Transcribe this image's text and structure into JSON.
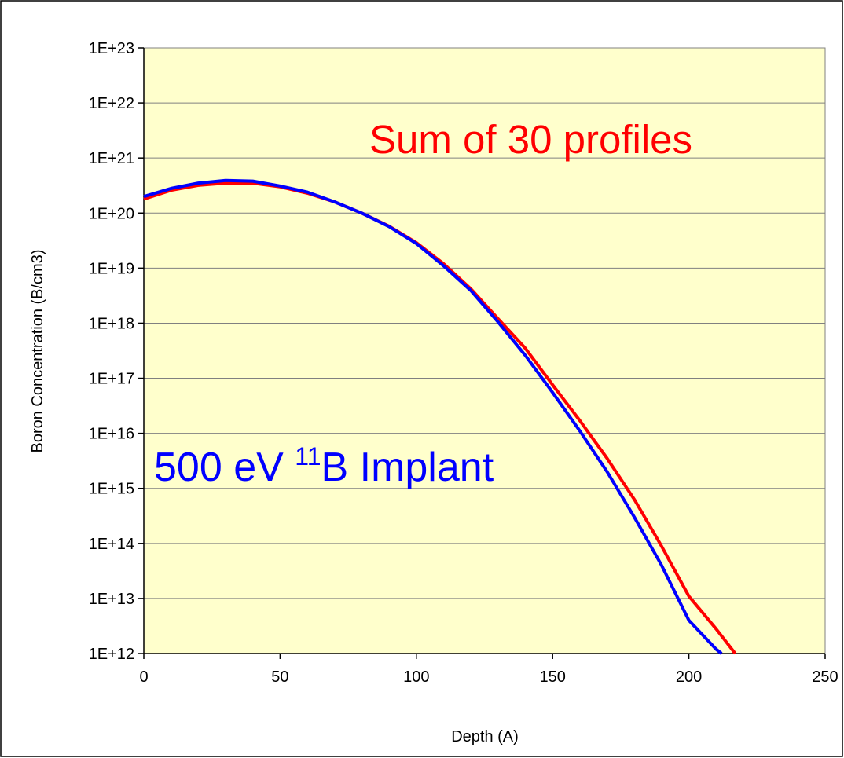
{
  "chart_data": {
    "type": "line",
    "xlabel": "Depth (A)",
    "ylabel": "Boron Concentration (B/cm3)",
    "log_y": true,
    "grid": true,
    "background": "#ffffcc",
    "xlim": [
      0,
      250
    ],
    "xticks": [
      0,
      50,
      100,
      150,
      200,
      250
    ],
    "ylim": [
      1000000000000.0,
      1e+23
    ],
    "yticks": [
      {
        "value": 1000000000000.0,
        "label": "1E+12"
      },
      {
        "value": 10000000000000.0,
        "label": "1E+13"
      },
      {
        "value": 100000000000000.0,
        "label": "1E+14"
      },
      {
        "value": 1000000000000000.0,
        "label": "1E+15"
      },
      {
        "value": 1e+16,
        "label": "1E+16"
      },
      {
        "value": 1e+17,
        "label": "1E+17"
      },
      {
        "value": 1e+18,
        "label": "1E+18"
      },
      {
        "value": 1e+19,
        "label": "1E+19"
      },
      {
        "value": 1e+20,
        "label": "1E+20"
      },
      {
        "value": 1e+21,
        "label": "1E+21"
      },
      {
        "value": 1e+22,
        "label": "1E+22"
      },
      {
        "value": 1e+23,
        "label": "1E+23"
      }
    ],
    "series": [
      {
        "color": "#ff0000",
        "x": [
          0,
          10,
          20,
          30,
          40,
          50,
          60,
          70,
          80,
          90,
          100,
          110,
          120,
          130,
          140,
          150,
          160,
          170,
          180,
          190,
          200,
          210,
          217
        ],
        "values": [
          1.8e+20,
          2.6e+20,
          3.2e+20,
          3.5e+20,
          3.5e+20,
          3e+20,
          2.3e+20,
          1.6e+20,
          1e+20,
          5.8e+19,
          2.9e+19,
          1.2e+19,
          4.2e+18,
          1.2e+18,
          3.5e+17,
          7.6e+16,
          1.7e+16,
          3500000000000000.0,
          630000000000000.0,
          89000000000000.0,
          11000000000000.0,
          2800000000000.0,
          1000000000000.0
        ]
      },
      {
        "color": "#0000ff",
        "x": [
          0,
          10,
          20,
          30,
          40,
          50,
          60,
          70,
          80,
          90,
          100,
          110,
          120,
          130,
          140,
          150,
          160,
          170,
          180,
          190,
          200,
          210,
          212
        ],
        "values": [
          2e+20,
          2.8e+20,
          3.5e+20,
          3.9e+20,
          3.8e+20,
          3.1e+20,
          2.4e+20,
          1.6e+20,
          1e+20,
          5.7e+19,
          2.8e+19,
          1.1e+19,
          3.9e+18,
          1.05e+18,
          2.6e+17,
          5.5e+16,
          1.1e+16,
          2000000000000000.0,
          300000000000000.0,
          40000000000000.0,
          4000000000000.0,
          1200000000000.0,
          1000000000000.0
        ]
      }
    ],
    "annotations": [
      {
        "text": "Sum of 30 profiles",
        "color": "#ff0000"
      },
      {
        "parts": [
          "500 eV ",
          "11",
          "B Implant"
        ],
        "color": "#0000ff"
      }
    ]
  }
}
